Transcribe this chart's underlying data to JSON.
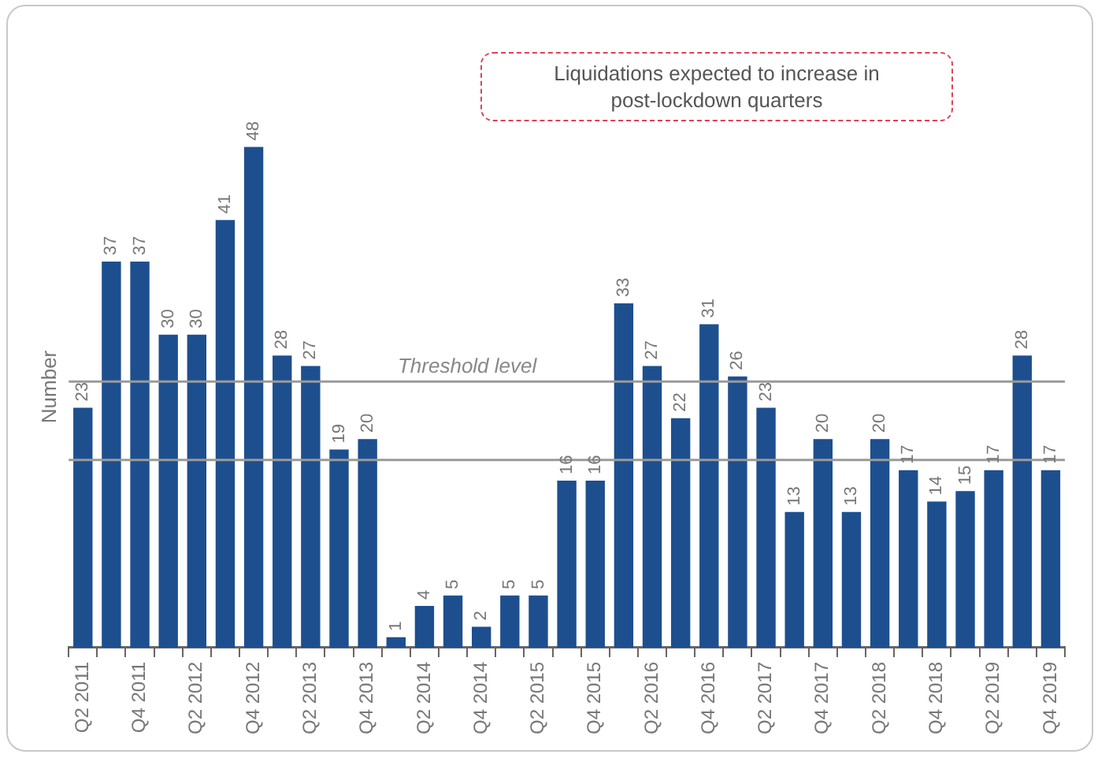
{
  "chart_data": {
    "type": "bar",
    "ylabel": "Number",
    "categories": [
      "Q2 2011",
      null,
      "Q4 2011",
      null,
      "Q2 2012",
      null,
      "Q4 2012",
      null,
      "Q2 2013",
      null,
      "Q4 2013",
      null,
      "Q2 2014",
      null,
      "Q4 2014",
      null,
      "Q2 2015",
      null,
      "Q4 2015",
      null,
      "Q2 2016",
      null,
      "Q4 2016",
      null,
      "Q2 2017",
      null,
      "Q4 2017",
      null,
      "Q2 2018",
      null,
      "Q4 2018",
      null,
      "Q2 2019",
      null,
      "Q4 2019"
    ],
    "values": [
      23,
      37,
      37,
      30,
      30,
      41,
      48,
      28,
      27,
      19,
      20,
      1,
      4,
      5,
      2,
      5,
      5,
      16,
      16,
      33,
      27,
      22,
      31,
      26,
      23,
      13,
      20,
      13,
      20,
      17,
      14,
      15,
      17,
      28,
      17
    ],
    "color": "#1d4f8f",
    "data_labels": true,
    "legend": false,
    "grid": false,
    "ref_lines": [
      {
        "axis": "y",
        "value": 25.5,
        "label": "Threshold level",
        "color": "#9a9a9a"
      },
      {
        "axis": "y",
        "value": 18,
        "color": "#9a9a9a"
      }
    ],
    "annotations": [
      "Liquidations expected to increase in post-lockdown quarters"
    ]
  }
}
